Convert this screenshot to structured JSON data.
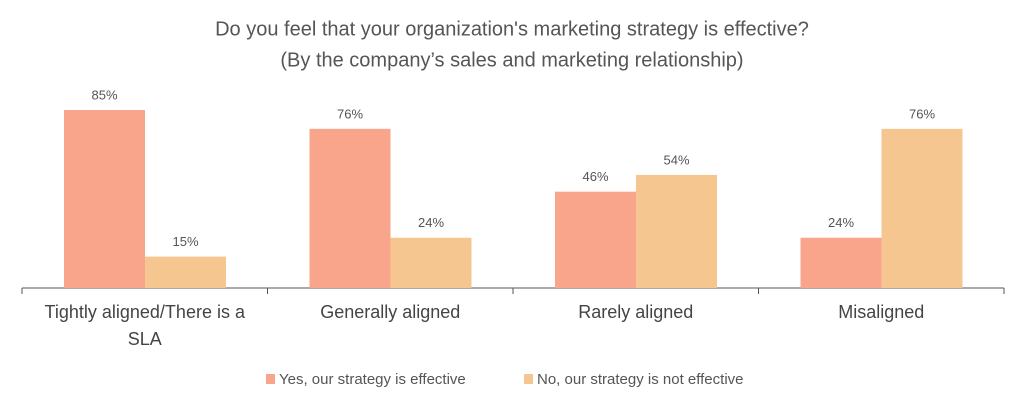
{
  "chart_data": {
    "type": "bar",
    "title": "Do you feel that your organization's marketing strategy is effective?",
    "subtitle": "(By the company’s sales and marketing relationship)",
    "categories": [
      "Tightly aligned/There is a SLA",
      "Generally aligned",
      "Rarely aligned",
      "Misaligned"
    ],
    "series": [
      {
        "name": "Yes, our strategy is effective",
        "color": "#f9a58b",
        "values": [
          85,
          76,
          46,
          24
        ],
        "value_labels": [
          "85%",
          "76%",
          "46%",
          "24%"
        ]
      },
      {
        "name": "No, our strategy is not effective",
        "color": "#f5c690",
        "values": [
          15,
          24,
          54,
          76
        ],
        "value_labels": [
          "15%",
          "24%",
          "54%",
          "76%"
        ]
      }
    ]
  }
}
